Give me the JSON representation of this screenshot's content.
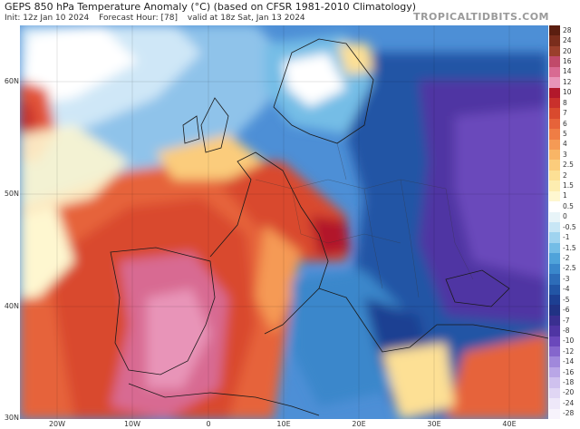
{
  "header": {
    "title": "GEPS 850 hPa Temperature Anomaly (°C) (based on CFSR 1981-2010 Climatology)",
    "init": "Init: 12z Jan 10 2024",
    "forecast_hour": "Forecast Hour: [78]",
    "valid": "valid at 18z Sat, Jan 13 2024",
    "brand": "TROPICALTIDBITS.COM"
  },
  "axes": {
    "lat_labels": [
      "60N",
      "50N",
      "40N",
      "30N"
    ],
    "lon_labels": [
      "20W",
      "10W",
      "0",
      "10E",
      "20E",
      "30E",
      "40E"
    ]
  },
  "colorbar": {
    "labels": [
      "28",
      "24",
      "20",
      "16",
      "14",
      "12",
      "10",
      "8",
      "7",
      "6",
      "5",
      "4",
      "3",
      "2.5",
      "2",
      "1.5",
      "1",
      "0.5",
      "0",
      "-0.5",
      "-1",
      "-1.5",
      "-2",
      "-2.5",
      "-3",
      "-4",
      "-5",
      "-6",
      "-7",
      "-8",
      "-10",
      "-12",
      "-14",
      "-16",
      "-18",
      "-20",
      "-24",
      "-28"
    ],
    "colors": [
      "#5b1e10",
      "#7a2d1c",
      "#9a3f2c",
      "#c04a6a",
      "#d86a92",
      "#e894b8",
      "#b2182b",
      "#c9302c",
      "#d94a2e",
      "#e6633a",
      "#ef7d45",
      "#f59a55",
      "#f8b566",
      "#fbcc7c",
      "#fde095",
      "#fdedb0",
      "#fef7d0",
      "#ffffff",
      "#e8f4f8",
      "#c8e6f5",
      "#9fd3ef",
      "#74bde6",
      "#4fa3da",
      "#3a87cb",
      "#2d6cb8",
      "#2255a5",
      "#1d3f92",
      "#213284",
      "#3a2f90",
      "#4f35a3",
      "#6a48bb",
      "#8566cc",
      "#a088db",
      "#b9a6e6",
      "#cfc1ee",
      "#e0d6f4",
      "#eee8f9",
      "#f7f3fc"
    ]
  },
  "map": {
    "description_colors": {
      "warm": "#d7301f",
      "cold": "#3a5fcd",
      "neutral": "#ffffff"
    }
  }
}
